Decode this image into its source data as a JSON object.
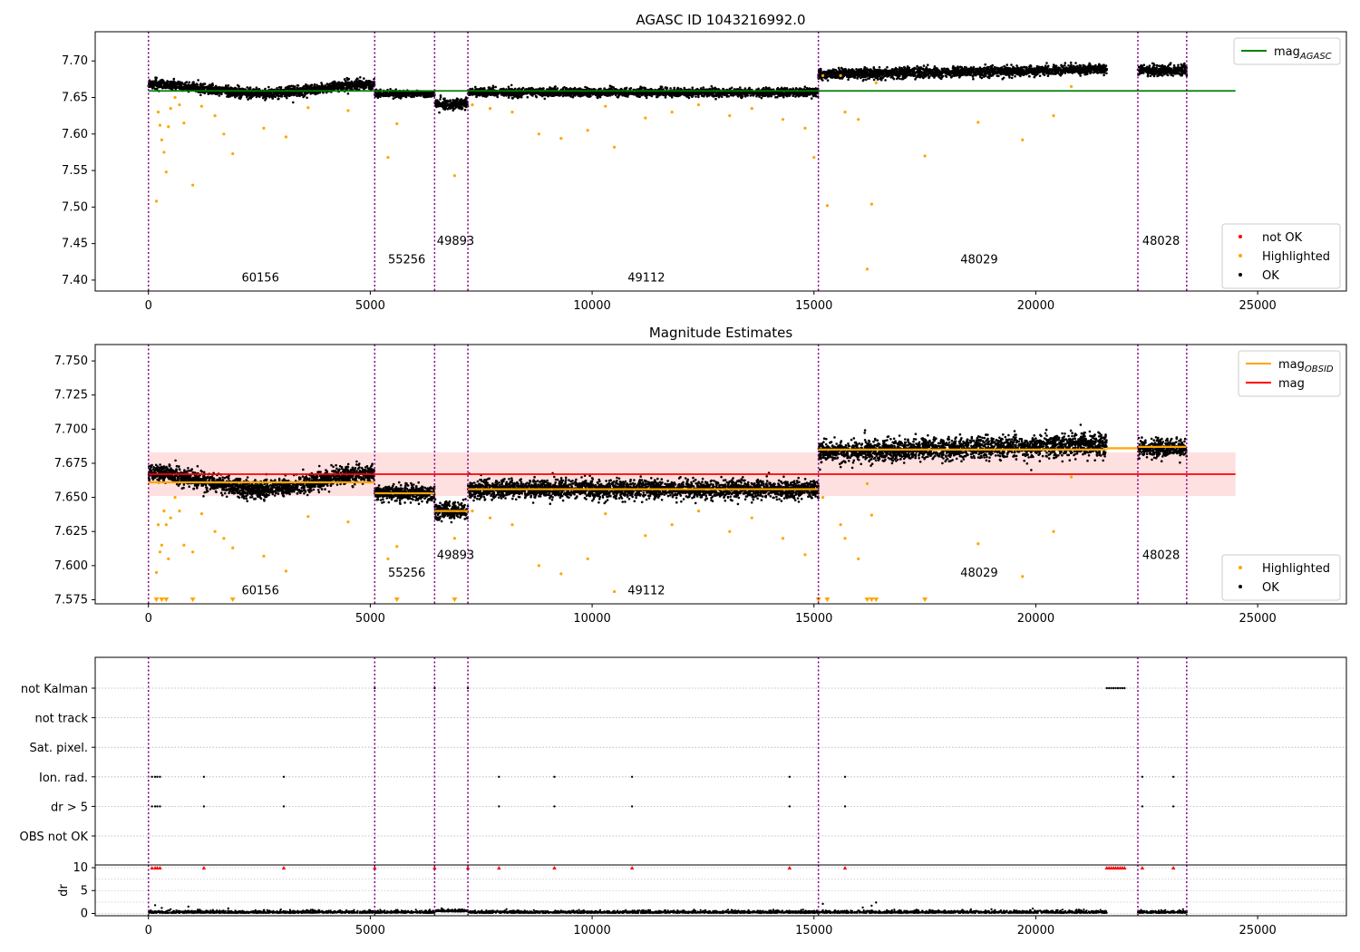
{
  "chart_data": [
    {
      "type": "scatter",
      "title": "AGASC ID 1043216992.0",
      "xlim": [
        -1200,
        27000
      ],
      "ylim": [
        7.385,
        7.74
      ],
      "x_ticks": [
        0,
        5000,
        10000,
        15000,
        20000,
        25000
      ],
      "y_ticks": [
        7.4,
        7.45,
        7.5,
        7.55,
        7.6,
        7.65,
        7.7
      ],
      "y_tick_labels": [
        "7.40",
        "7.45",
        "7.50",
        "7.55",
        "7.60",
        "7.65",
        "7.70"
      ],
      "vlines": [
        0,
        5100,
        6450,
        7200,
        15100,
        22300,
        23400
      ],
      "segments": [
        {
          "x0": 0,
          "x1": 5100,
          "base": 7.663,
          "spread": 0.006,
          "trend": "dip",
          "amp": 0.012
        },
        {
          "x0": 5100,
          "x1": 6450,
          "base": 7.655,
          "spread": 0.004,
          "trend": "flat",
          "amp": 0
        },
        {
          "x0": 6450,
          "x1": 7200,
          "base": 7.641,
          "spread": 0.006,
          "trend": "flat",
          "amp": 0
        },
        {
          "x0": 7200,
          "x1": 15100,
          "base": 7.657,
          "spread": 0.005,
          "trend": "flat",
          "amp": 0
        },
        {
          "x0": 15100,
          "x1": 21600,
          "base": 7.685,
          "spread": 0.006,
          "trend": "rise",
          "amp": 0.007
        },
        {
          "x0": 22300,
          "x1": 23400,
          "base": 7.687,
          "spread": 0.006,
          "trend": "flat",
          "amp": 0
        }
      ],
      "lines": [
        {
          "name": "mag_AGASC",
          "color": "#008000",
          "x": [
            0,
            24500
          ],
          "y": [
            7.659,
            7.659
          ]
        }
      ],
      "highlighted": {
        "x": [
          180,
          220,
          260,
          300,
          350,
          400,
          450,
          500,
          600,
          700,
          800,
          1000,
          1200,
          1500,
          1700,
          1900,
          2600,
          3100,
          3600,
          4500,
          5400,
          5600,
          6900,
          7300,
          7700,
          8200,
          8800,
          9300,
          9900,
          10300,
          10500,
          11200,
          11800,
          12400,
          13100,
          13600,
          14300,
          14800,
          15000,
          15200,
          15300,
          15600,
          15700,
          16000,
          16200,
          16300,
          16400,
          17500,
          18700,
          19700,
          20400,
          20800
        ],
        "y": [
          7.508,
          7.63,
          7.612,
          7.592,
          7.575,
          7.548,
          7.61,
          7.635,
          7.65,
          7.64,
          7.615,
          7.53,
          7.638,
          7.625,
          7.6,
          7.573,
          7.608,
          7.596,
          7.636,
          7.632,
          7.568,
          7.614,
          7.543,
          7.64,
          7.635,
          7.63,
          7.6,
          7.594,
          7.605,
          7.638,
          7.582,
          7.622,
          7.63,
          7.64,
          7.625,
          7.635,
          7.62,
          7.608,
          7.568,
          7.68,
          7.502,
          7.68,
          7.63,
          7.62,
          7.415,
          7.504,
          7.67,
          7.57,
          7.616,
          7.592,
          7.625,
          7.665
        ]
      },
      "annotations": [
        {
          "text": "60156",
          "x": 2100,
          "y": 7.398
        },
        {
          "text": "55256",
          "x": 5400,
          "y": 7.423
        },
        {
          "text": "49893",
          "x": 6500,
          "y": 7.448
        },
        {
          "text": "49112",
          "x": 10800,
          "y": 7.398
        },
        {
          "text": "48029",
          "x": 18300,
          "y": 7.423
        },
        {
          "text": "48028",
          "x": 22400,
          "y": 7.448
        }
      ],
      "legends": [
        {
          "placement": "top-right",
          "entries": [
            {
              "label": "mag",
              "sub": "AGASC",
              "color": "#008000",
              "kind": "line"
            }
          ]
        },
        {
          "placement": "bottom-right",
          "entries": [
            {
              "label": "not OK",
              "color": "#ff0000",
              "kind": "dot"
            },
            {
              "label": "Highlighted",
              "color": "#ffa500",
              "kind": "dot"
            },
            {
              "label": "OK",
              "color": "#000000",
              "kind": "dot"
            }
          ]
        }
      ]
    },
    {
      "type": "scatter",
      "title": "Magnitude Estimates",
      "xlim": [
        -1200,
        27000
      ],
      "ylim": [
        7.572,
        7.762
      ],
      "x_ticks": [
        0,
        5000,
        10000,
        15000,
        20000,
        25000
      ],
      "y_ticks": [
        7.575,
        7.6,
        7.625,
        7.65,
        7.675,
        7.7,
        7.725,
        7.75
      ],
      "y_tick_labels": [
        "7.575",
        "7.600",
        "7.625",
        "7.650",
        "7.675",
        "7.700",
        "7.725",
        "7.750"
      ],
      "vlines": [
        0,
        5100,
        6450,
        7200,
        15100,
        22300,
        23400
      ],
      "band": {
        "x": [
          0,
          24500
        ],
        "y": [
          7.651,
          7.683
        ],
        "color": "#ffcccc"
      },
      "segments": [
        {
          "x0": 0,
          "x1": 5100,
          "base": 7.663,
          "spread": 0.006,
          "trend": "dip",
          "amp": 0.012
        },
        {
          "x0": 5100,
          "x1": 6450,
          "base": 7.653,
          "spread": 0.005,
          "trend": "flat",
          "amp": 0
        },
        {
          "x0": 6450,
          "x1": 7200,
          "base": 7.64,
          "spread": 0.006,
          "trend": "flat",
          "amp": 0
        },
        {
          "x0": 7200,
          "x1": 15100,
          "base": 7.656,
          "spread": 0.006,
          "trend": "flat",
          "amp": 0
        },
        {
          "x0": 15100,
          "x1": 21600,
          "base": 7.686,
          "spread": 0.007,
          "trend": "rise",
          "amp": 0.006
        },
        {
          "x0": 22300,
          "x1": 23400,
          "base": 7.686,
          "spread": 0.006,
          "trend": "flat",
          "amp": 0
        }
      ],
      "lines": [
        {
          "name": "mag_OBSID",
          "color": "#ffa500",
          "steps": [
            {
              "x0": 0,
              "x1": 5100,
              "y": 7.661
            },
            {
              "x0": 5100,
              "x1": 6450,
              "y": 7.653
            },
            {
              "x0": 6450,
              "x1": 7200,
              "y": 7.64
            },
            {
              "x0": 7200,
              "x1": 15100,
              "y": 7.656
            },
            {
              "x0": 15100,
              "x1": 21600,
              "y": 7.685
            },
            {
              "x0": 21600,
              "x1": 22300,
              "y": 7.686
            },
            {
              "x0": 22300,
              "x1": 23400,
              "y": 7.687
            }
          ]
        },
        {
          "name": "mag",
          "color": "#ff0000",
          "x": [
            0,
            24500
          ],
          "y": [
            7.667,
            7.667
          ]
        }
      ],
      "highlighted": {
        "x": [
          180,
          220,
          260,
          300,
          350,
          400,
          450,
          500,
          600,
          700,
          800,
          1000,
          1200,
          1500,
          1700,
          1900,
          2600,
          3100,
          3600,
          4500,
          5400,
          5600,
          6900,
          7300,
          7700,
          8200,
          8800,
          9300,
          9900,
          10300,
          10500,
          11200,
          11800,
          12400,
          13100,
          13600,
          14300,
          14800,
          15200,
          15600,
          15700,
          16000,
          16200,
          16300,
          18700,
          19700,
          20400,
          20800
        ],
        "y": [
          7.595,
          7.63,
          7.61,
          7.615,
          7.64,
          7.63,
          7.605,
          7.635,
          7.65,
          7.64,
          7.615,
          7.61,
          7.638,
          7.625,
          7.62,
          7.613,
          7.607,
          7.596,
          7.636,
          7.632,
          7.605,
          7.614,
          7.62,
          7.64,
          7.635,
          7.63,
          7.6,
          7.594,
          7.605,
          7.638,
          7.581,
          7.622,
          7.63,
          7.64,
          7.625,
          7.635,
          7.62,
          7.608,
          7.65,
          7.63,
          7.62,
          7.605,
          7.66,
          7.637,
          7.616,
          7.592,
          7.625,
          7.665
        ]
      },
      "off_scale_markers_x": [
        180,
        300,
        400,
        1000,
        1900,
        5600,
        6900,
        15100,
        15300,
        16200,
        16300,
        16400,
        17500
      ],
      "annotations": [
        {
          "text": "60156",
          "x": 2100,
          "y": 7.579
        },
        {
          "text": "55256",
          "x": 5400,
          "y": 7.592
        },
        {
          "text": "49893",
          "x": 6500,
          "y": 7.605
        },
        {
          "text": "49112",
          "x": 10800,
          "y": 7.579
        },
        {
          "text": "48029",
          "x": 18300,
          "y": 7.592
        },
        {
          "text": "48028",
          "x": 22400,
          "y": 7.605
        }
      ],
      "legends": [
        {
          "placement": "top-right",
          "entries": [
            {
              "label": "mag",
              "sub": "OBSID",
              "color": "#ffa500",
              "kind": "line"
            },
            {
              "label": "mag",
              "sub": "",
              "color": "#ff0000",
              "kind": "line"
            }
          ]
        },
        {
          "placement": "bottom-right",
          "entries": [
            {
              "label": "Highlighted",
              "color": "#ffa500",
              "kind": "dot"
            },
            {
              "label": "OK",
              "color": "#000000",
              "kind": "dot"
            }
          ]
        }
      ]
    },
    {
      "type": "scatter",
      "title": "",
      "xlim": [
        -1200,
        27000
      ],
      "categories": [
        "not Kalman",
        "not track",
        "Sat. pixel.",
        "Ion. rad.",
        "dr > 5",
        "OBS not OK"
      ],
      "vlines": [
        0,
        5100,
        6450,
        7200,
        15100,
        22300,
        23400
      ],
      "flags": {
        "not Kalman": [
          5100,
          6450,
          7200,
          21600,
          21650,
          21700,
          21750,
          21800,
          21850,
          21900,
          21950,
          22000
        ],
        "not track": [],
        "Sat. pixel.": [],
        "Ion. rad.": [
          80,
          150,
          200,
          260,
          1250,
          3050,
          7900,
          9150,
          10900,
          14450,
          15700,
          22400,
          23100
        ],
        "dr > 5": [
          80,
          150,
          200,
          260,
          1250,
          3050,
          7900,
          9150,
          10900,
          14450,
          15700,
          22400,
          23100
        ],
        "OBS not OK": []
      }
    },
    {
      "type": "scatter",
      "title": "",
      "ylabel": "dr",
      "xlim": [
        -1200,
        27000
      ],
      "ylim": [
        -0.5,
        10.6
      ],
      "x_ticks": [
        0,
        5000,
        10000,
        15000,
        20000,
        25000
      ],
      "y_ticks": [
        0,
        5,
        10
      ],
      "y_tick_labels": [
        "0",
        "5",
        "10"
      ],
      "vlines": [
        0,
        5100,
        6450,
        7200,
        15100,
        22300,
        23400
      ],
      "clipped_x": [
        80,
        150,
        200,
        260,
        1250,
        3050,
        5100,
        6450,
        7200,
        7900,
        9150,
        10900,
        14450,
        15700,
        21600,
        21650,
        21700,
        21750,
        21800,
        21850,
        21900,
        21950,
        22000,
        22400,
        23100
      ],
      "spikes": [
        {
          "x": 150,
          "y": 1.8
        },
        {
          "x": 300,
          "y": 1.2
        },
        {
          "x": 500,
          "y": 0.9
        },
        {
          "x": 900,
          "y": 1.5
        },
        {
          "x": 1800,
          "y": 1.1
        },
        {
          "x": 2600,
          "y": 0.7
        },
        {
          "x": 3700,
          "y": 0.8
        },
        {
          "x": 15200,
          "y": 2.1
        },
        {
          "x": 16100,
          "y": 1.3
        },
        {
          "x": 16400,
          "y": 2.4
        },
        {
          "x": 16300,
          "y": 1.7
        },
        {
          "x": 19000,
          "y": 0.9
        }
      ]
    }
  ]
}
